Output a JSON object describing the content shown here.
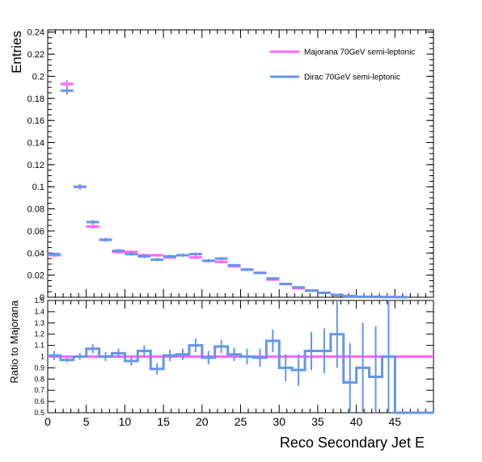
{
  "chart_data": [
    {
      "type": "line",
      "panel": "top",
      "ylabel": "Entries",
      "ylim": [
        0,
        0.242
      ],
      "yticks": [
        0,
        0.02,
        0.04,
        0.06,
        0.08,
        0.1,
        0.12,
        0.14,
        0.16,
        0.18,
        0.2,
        0.22,
        0.24
      ],
      "ytick_labels": [
        "0",
        "0.02",
        "0.04",
        "0.06",
        "0.08",
        "0.1",
        "0.12",
        "0.14",
        "0.16",
        "0.18",
        "0.2",
        "0.22",
        "0.24"
      ],
      "xlim": [
        0,
        50
      ],
      "bin_width": 1.667,
      "legend_position": "top-right",
      "series": [
        {
          "name": "Majorana 70GeV semi-leptonic",
          "color": "#ff66ff",
          "style": "markers-with-errorbars",
          "values": [
            0.038,
            0.193,
            0.1,
            0.064,
            0.052,
            0.041,
            0.041,
            0.038,
            0.038,
            0.036,
            0.038,
            0.036,
            0.033,
            0.032,
            0.028,
            0.025,
            0.022,
            0.016,
            0.012,
            0.008,
            0.006,
            0.004,
            0.002,
            0.001,
            0.0005,
            0.0004,
            0.0003,
            0.0002
          ],
          "errors": [
            0.0015,
            0.0035,
            0.0025,
            0.002,
            0.0018,
            0.0016,
            0.0016,
            0.0015,
            0.0015,
            0.0015,
            0.0015,
            0.0015,
            0.0014,
            0.0014,
            0.0013,
            0.0012,
            0.0011,
            0.0009,
            0.0008,
            0.0007,
            0.0006,
            0.0005,
            0.0004,
            0.0003,
            0.0002,
            0.0002,
            0.0002,
            0.0001
          ]
        },
        {
          "name": "Dirac 70GeV semi-leptonic",
          "color": "#6495ed",
          "style": "markers-with-errorbars",
          "values": [
            0.039,
            0.187,
            0.1,
            0.068,
            0.052,
            0.042,
            0.039,
            0.037,
            0.034,
            0.037,
            0.038,
            0.039,
            0.033,
            0.035,
            0.029,
            0.025,
            0.022,
            0.017,
            0.012,
            0.009,
            0.006,
            0.004,
            0.002,
            0.001,
            0.0004,
            0.0003,
            0.0002,
            0.0001
          ],
          "errors": [
            0.0015,
            0.0035,
            0.0025,
            0.002,
            0.0018,
            0.0016,
            0.0016,
            0.0015,
            0.0015,
            0.0015,
            0.0015,
            0.0015,
            0.0014,
            0.0014,
            0.0013,
            0.0012,
            0.0011,
            0.0009,
            0.0008,
            0.0007,
            0.0006,
            0.0005,
            0.0004,
            0.0003,
            0.0002,
            0.0002,
            0.0002,
            0.0001
          ]
        }
      ]
    },
    {
      "type": "line",
      "panel": "bottom",
      "xlabel": "Reco Secondary Jet E",
      "ylabel": "Ratio to Majorana",
      "ylim": [
        0.5,
        1.5
      ],
      "yticks": [
        0.5,
        0.6,
        0.7,
        0.8,
        0.9,
        1,
        1.1,
        1.2,
        1.3,
        1.4,
        1.5
      ],
      "ytick_labels": [
        "0.5",
        "0.6",
        "0.7",
        "0.8",
        "0.9",
        "1",
        "1.1",
        "1.2",
        "1.3",
        "1.4",
        "1.5"
      ],
      "xlim": [
        0,
        50
      ],
      "xticks": [
        0,
        5,
        10,
        15,
        20,
        25,
        30,
        35,
        40,
        45
      ],
      "xtick_labels": [
        "0",
        "5",
        "10",
        "15",
        "20",
        "25",
        "30",
        "35",
        "40",
        "45"
      ],
      "bin_width": 1.667,
      "reference_line": {
        "y": 1,
        "color": "#ff66ff"
      },
      "series": [
        {
          "name": "Dirac 70GeV semi-leptonic",
          "color": "#6495ed",
          "style": "step-with-errorbars",
          "values": [
            1.01,
            0.97,
            1.0,
            1.07,
            1.0,
            1.03,
            0.96,
            1.05,
            0.89,
            1.01,
            1.02,
            1.1,
            0.99,
            1.09,
            1.02,
            1.0,
            0.99,
            1.14,
            0.9,
            0.88,
            1.05,
            1.05,
            1.2,
            0.77,
            0.9,
            0.82,
            1.0,
            0.49,
            0.49,
            0.49
          ],
          "errors": [
            0.04,
            0.02,
            0.03,
            0.04,
            0.04,
            0.04,
            0.04,
            0.05,
            0.05,
            0.05,
            0.05,
            0.06,
            0.06,
            0.06,
            0.06,
            0.07,
            0.08,
            0.1,
            0.12,
            0.14,
            0.17,
            0.2,
            0.3,
            0.35,
            0.4,
            0.45,
            0.6,
            0,
            0,
            0
          ]
        }
      ]
    }
  ]
}
